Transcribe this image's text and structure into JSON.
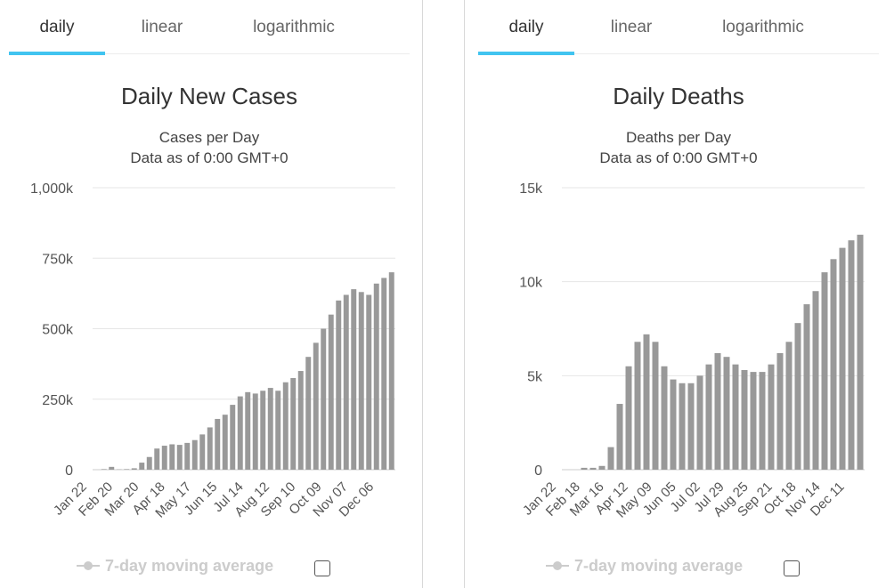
{
  "panels": [
    {
      "tabs": [
        {
          "label": "daily",
          "active": true
        },
        {
          "label": "linear",
          "active": false
        },
        {
          "label": "logarithmic",
          "active": false
        }
      ],
      "legend_label": "7-day moving average",
      "chart_data": {
        "type": "bar",
        "title": "Daily New Cases",
        "subtitle_lines": [
          "Cases per Day",
          "Data as of 0:00 GMT+0"
        ],
        "xlabel": "",
        "ylabel": "",
        "ylim": [
          0,
          1000000
        ],
        "y_ticks": [
          0,
          250000,
          500000,
          750000,
          1000000
        ],
        "y_tick_labels": [
          "0",
          "250k",
          "500k",
          "750k",
          "1,000k"
        ],
        "x_tick_labels": [
          "Jan 22",
          "Feb 20",
          "Mar 20",
          "Apr 18",
          "May 17",
          "Jun 15",
          "Jul 14",
          "Aug 12",
          "Sep 10",
          "Oct 09",
          "Nov 07",
          "Dec 06"
        ],
        "series_color": "#999999",
        "grid": true,
        "legend": "bottom",
        "x": [
          "Jan 22",
          "Feb 01",
          "Feb 13",
          "Feb 20",
          "Mar 01",
          "Mar 10",
          "Mar 20",
          "Mar 25",
          "Apr 01",
          "Apr 10",
          "Apr 18",
          "May 01",
          "May 17",
          "May 25",
          "Jun 01",
          "Jun 15",
          "Jun 25",
          "Jul 01",
          "Jul 14",
          "Jul 25",
          "Aug 01",
          "Aug 12",
          "Aug 25",
          "Sep 01",
          "Sep 10",
          "Sep 25",
          "Oct 01",
          "Oct 09",
          "Oct 15",
          "Oct 20",
          "Oct 25",
          "Nov 01",
          "Nov 07",
          "Nov 15",
          "Nov 20",
          "Nov 25",
          "Dec 01",
          "Dec 06",
          "Dec 10",
          "Dec 14"
        ],
        "values": [
          0,
          2000,
          10000,
          1000,
          2000,
          5000,
          25000,
          45000,
          75000,
          85000,
          90000,
          88000,
          95000,
          105000,
          125000,
          150000,
          180000,
          195000,
          230000,
          260000,
          275000,
          270000,
          280000,
          290000,
          280000,
          310000,
          325000,
          350000,
          400000,
          450000,
          500000,
          550000,
          600000,
          620000,
          640000,
          630000,
          620000,
          660000,
          680000,
          700000
        ]
      }
    },
    {
      "tabs": [
        {
          "label": "daily",
          "active": true
        },
        {
          "label": "linear",
          "active": false
        },
        {
          "label": "logarithmic",
          "active": false
        }
      ],
      "legend_label": "7-day moving average",
      "chart_data": {
        "type": "bar",
        "title": "Daily Deaths",
        "subtitle_lines": [
          "Deaths per Day",
          "Data as of 0:00 GMT+0"
        ],
        "xlabel": "",
        "ylabel": "",
        "ylim": [
          0,
          15000
        ],
        "y_ticks": [
          0,
          5000,
          10000,
          15000
        ],
        "y_tick_labels": [
          "0",
          "5k",
          "10k",
          "15k"
        ],
        "x_tick_labels": [
          "Jan 22",
          "Feb 18",
          "Mar 16",
          "Apr 12",
          "May 09",
          "Jun 05",
          "Jul 02",
          "Jul 29",
          "Aug 25",
          "Sep 21",
          "Oct 18",
          "Nov 14",
          "Dec 11"
        ],
        "series_color": "#999999",
        "grid": true,
        "legend": "bottom",
        "x": [
          "Jan 22",
          "Feb 01",
          "Feb 18",
          "Mar 01",
          "Mar 16",
          "Mar 25",
          "Apr 01",
          "Apr 05",
          "Apr 12",
          "Apr 20",
          "Apr 28",
          "May 09",
          "May 20",
          "Jun 05",
          "Jun 20",
          "Jul 02",
          "Jul 15",
          "Jul 29",
          "Aug 10",
          "Aug 25",
          "Sep 05",
          "Sep 21",
          "Oct 01",
          "Oct 10",
          "Oct 18",
          "Oct 25",
          "Nov 01",
          "Nov 07",
          "Nov 14",
          "Nov 20",
          "Nov 27",
          "Dec 04",
          "Dec 11",
          "Dec 14"
        ],
        "values": [
          0,
          0,
          100,
          100,
          200,
          1200,
          3500,
          5500,
          6800,
          7200,
          6800,
          5500,
          4800,
          4600,
          4600,
          5000,
          5600,
          6200,
          6000,
          5600,
          5300,
          5200,
          5200,
          5600,
          6200,
          6800,
          7800,
          8800,
          9500,
          10500,
          11200,
          11800,
          12200,
          12500
        ]
      }
    }
  ]
}
